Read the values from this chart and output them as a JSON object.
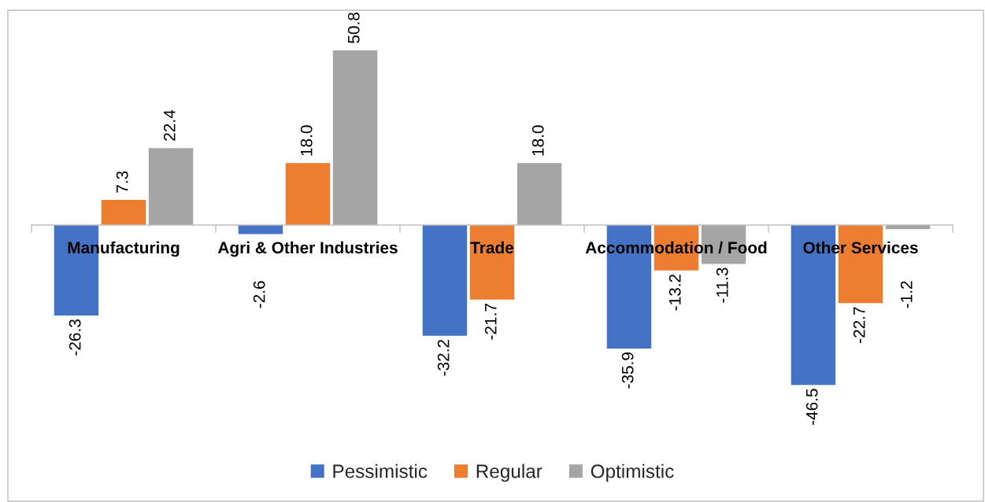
{
  "chart_data": {
    "type": "bar",
    "categories": [
      "Manufacturing",
      "Agri & Other Industries",
      "Trade",
      "Accommodation / Food",
      "Other Services"
    ],
    "series": [
      {
        "name": "Pessimistic",
        "color": "#4472c4",
        "values": [
          -26.3,
          -2.6,
          -32.2,
          -35.9,
          -46.5
        ],
        "value_labels": [
          "-26.3",
          "-2.6",
          "-32.2",
          "-35.9",
          "-46.5"
        ]
      },
      {
        "name": "Regular",
        "color": "#ed7d31",
        "values": [
          7.3,
          18.0,
          -21.7,
          -13.2,
          -22.7
        ],
        "value_labels": [
          "7.3",
          "18.0",
          "-21.7",
          "-13.2",
          "-22.7"
        ]
      },
      {
        "name": "Optimistic",
        "color": "#a5a5a5",
        "values": [
          22.4,
          50.8,
          18.0,
          -11.3,
          -1.2
        ],
        "value_labels": [
          "22.4",
          "50.8",
          "18.0",
          "-11.3",
          "-1.2"
        ]
      }
    ],
    "legend": "bottom",
    "tick_labels": "x"
  }
}
